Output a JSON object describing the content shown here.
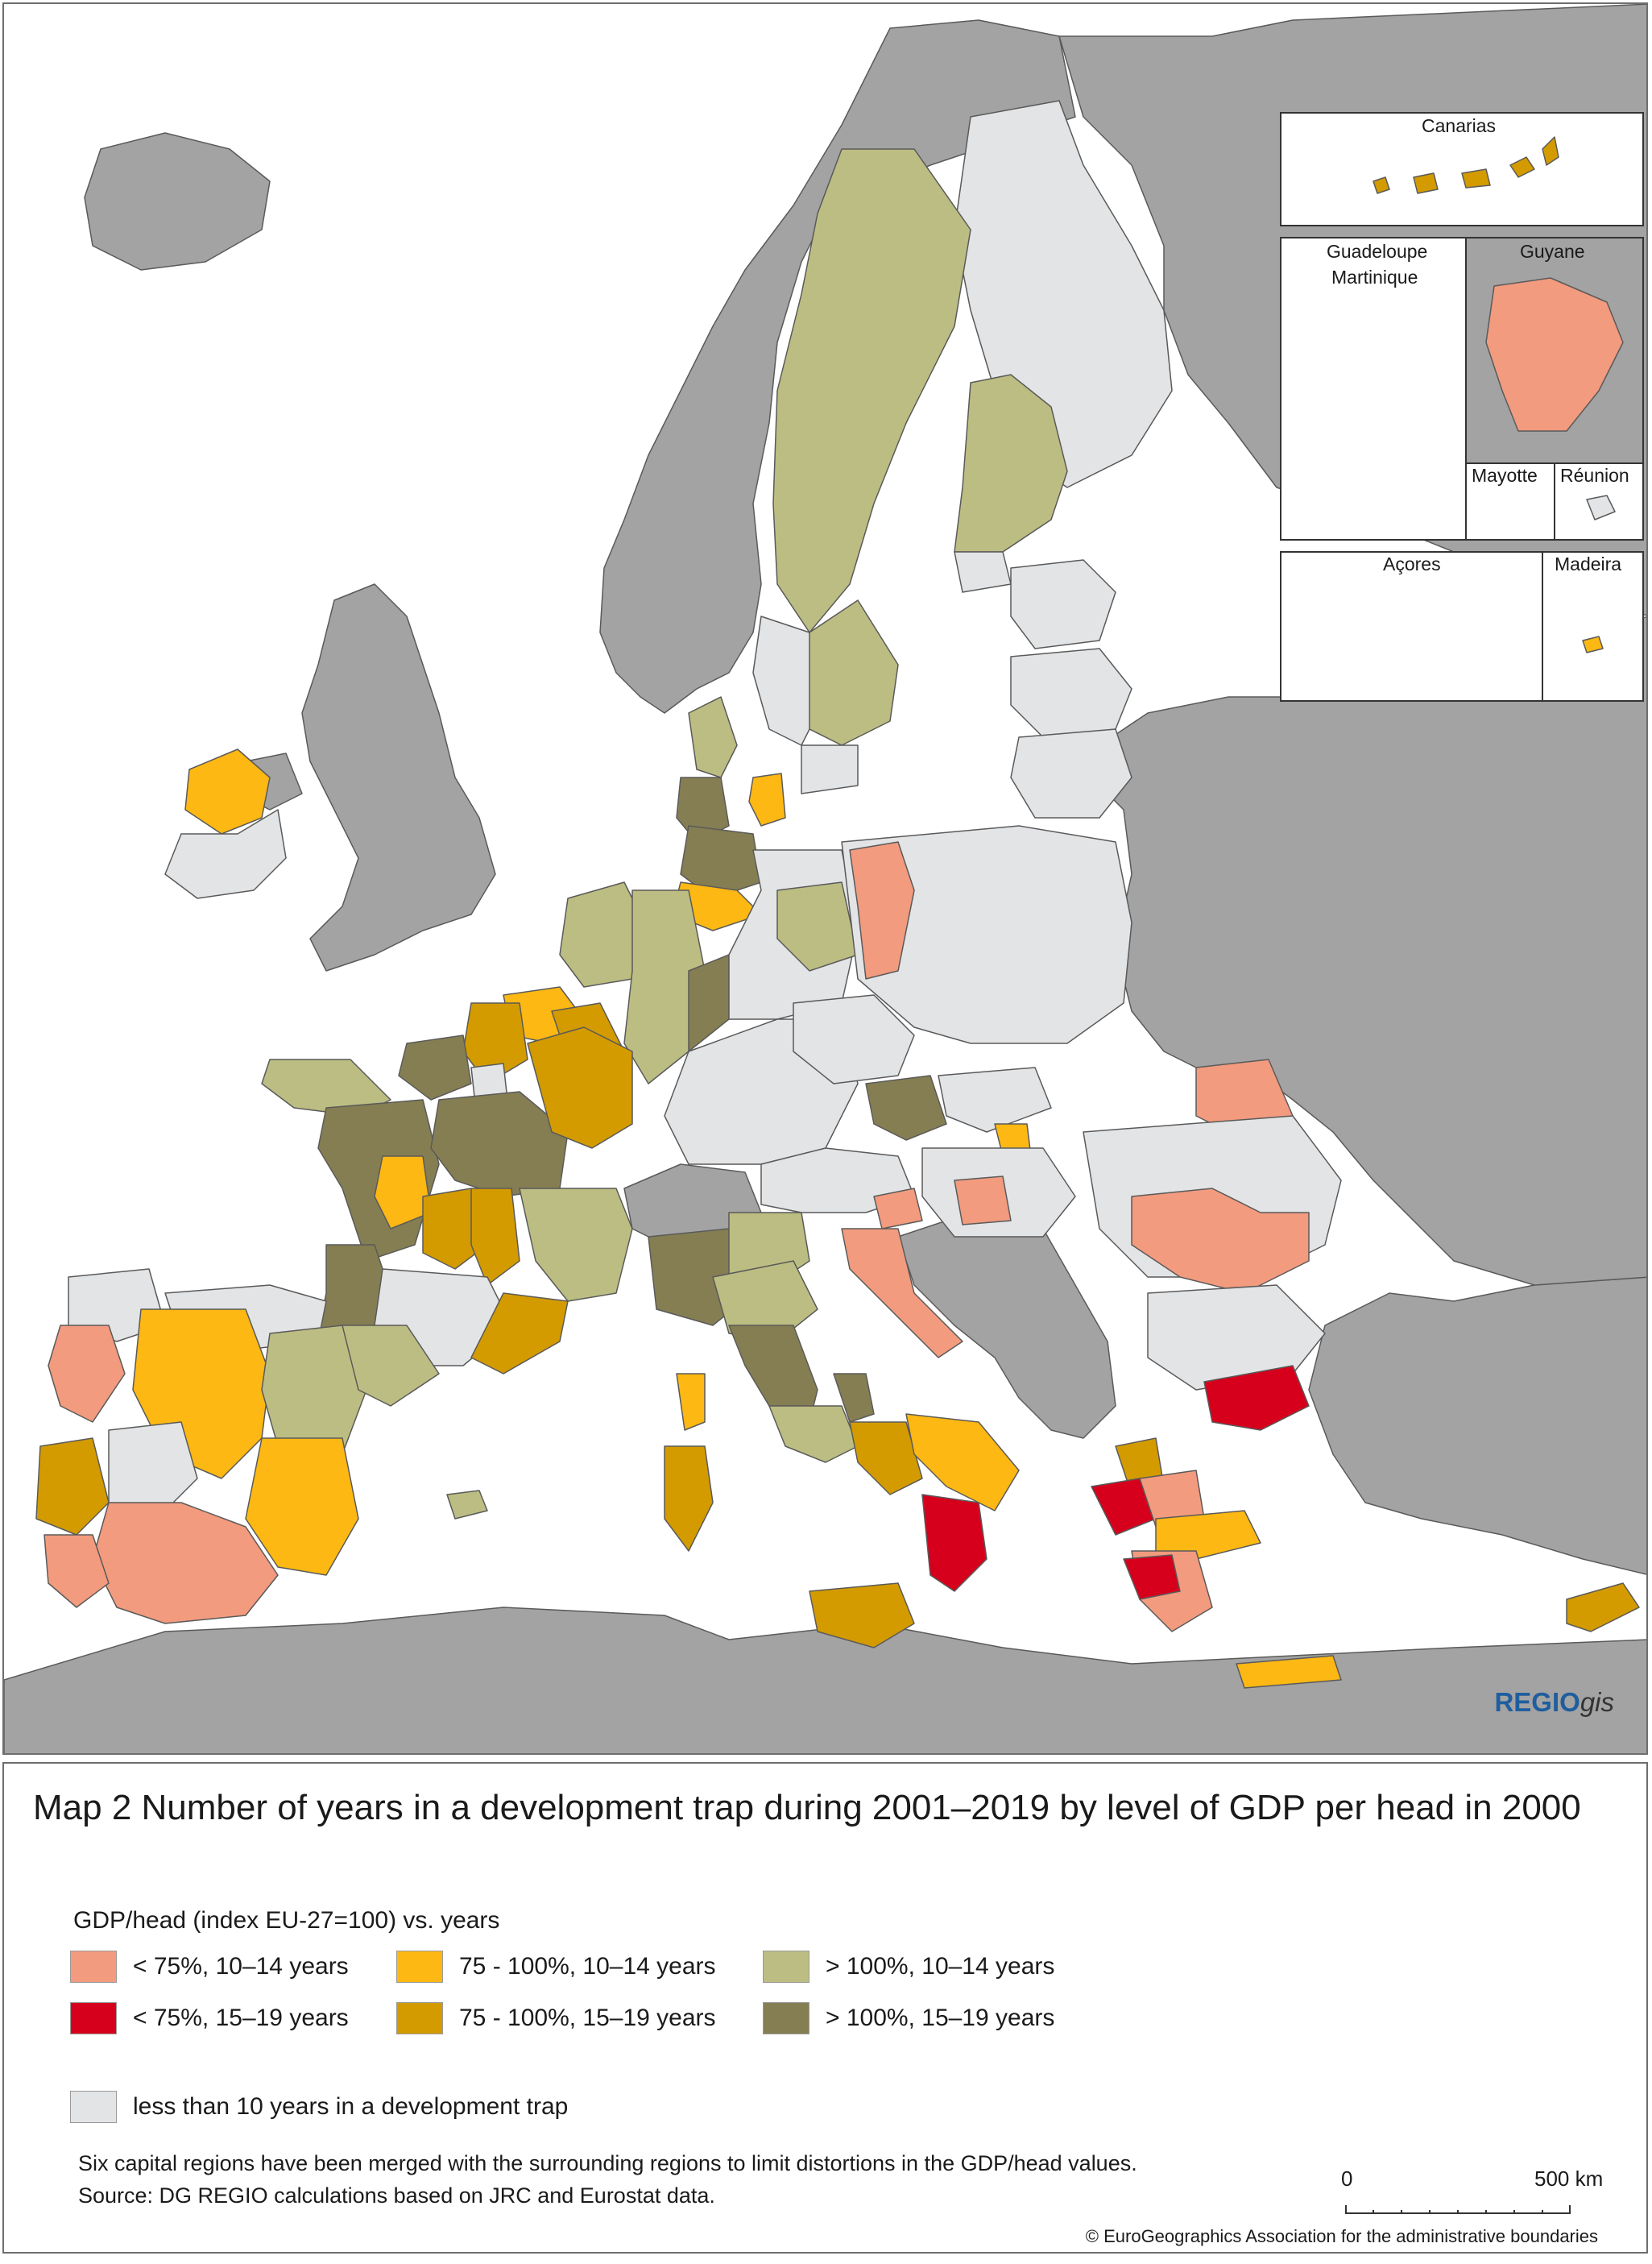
{
  "colors": {
    "sea": "#ffffff",
    "non_eu": "#a3a3a3",
    "border": "#5a5a5a",
    "low_10_14": "#f29b7e",
    "low_15_19": "#d6001c",
    "mid_10_14": "#fdb813",
    "mid_15_19": "#d39b00",
    "high_10_14": "#bcbd82",
    "high_15_19": "#857e52",
    "under_10": "#e3e4e6"
  },
  "insets": {
    "canarias": "Canarias",
    "guadeloupe": "Guadeloupe",
    "martinique": "Martinique",
    "guyane": "Guyane",
    "mayotte": "Mayotte",
    "reunion": "Réunion",
    "acores": "Açores",
    "madeira": "Madeira"
  },
  "logo": {
    "brand": "REGIO",
    "suffix": "gis"
  },
  "legend": {
    "title": "Map 2 Number of years in a development trap during 2001–2019 by level of GDP per head in 2000",
    "subtitle": "GDP/head (index EU-27=100) vs. years",
    "items": [
      {
        "label": "< 75%, 10–14 years",
        "color": "#f29b7e"
      },
      {
        "label": "75 - 100%, 10–14 years",
        "color": "#fdb813"
      },
      {
        "label": "> 100%, 10–14 years",
        "color": "#bcbd82"
      },
      {
        "label": "< 75%, 15–19 years",
        "color": "#d6001c"
      },
      {
        "label": "75 - 100%, 15–19 years",
        "color": "#d39b00"
      },
      {
        "label": "> 100%, 15–19 years",
        "color": "#857e52"
      }
    ],
    "other": {
      "label": "less than 10 years in a development trap",
      "color": "#e3e4e6"
    },
    "note": "Six capital regions have been merged with the surrounding regions to limit distortions in the GDP/head values.",
    "source": "Source: DG REGIO calculations based on JRC and Eurostat data.",
    "scale": {
      "start": "0",
      "end": "500 km"
    },
    "copyright": "© EuroGeographics Association for the administrative boundaries"
  }
}
